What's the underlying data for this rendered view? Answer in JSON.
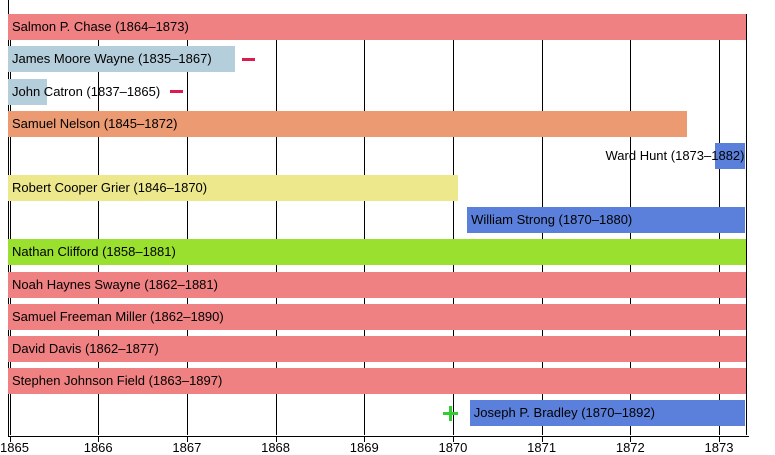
{
  "chart_data": {
    "type": "timeline",
    "title": "",
    "x_axis": {
      "tick_labels": [
        "1865",
        "1866",
        "1867",
        "1868",
        "1869",
        "1870",
        "1871",
        "1872",
        "1873"
      ],
      "range": [
        1865,
        1873.3
      ],
      "grid": true
    },
    "rows": [
      {
        "name": "Salmon P. Chase",
        "label": "Salmon P. Chase (1864–1873)",
        "tenure": [
          1864,
          1873
        ],
        "bar": [
          1864.99,
          1873.3
        ],
        "color": "#f08182",
        "label_align": "left"
      },
      {
        "name": "James Moore Wayne",
        "label": "James Moore Wayne (1835–1867)",
        "tenure": [
          1835,
          1867
        ],
        "bar": [
          1864.99,
          1867.54
        ],
        "color": "#b5cedb",
        "label_align": "left"
      },
      {
        "name": "John Catron",
        "label": "John Catron (1837–1865)",
        "tenure": [
          1837,
          1865
        ],
        "bar": [
          1864.99,
          1865.42
        ],
        "color": "#b5cedb",
        "label_align": "left"
      },
      {
        "name": "Samuel Nelson",
        "label": "Samuel Nelson (1845–1872)",
        "tenure": [
          1845,
          1872
        ],
        "bar": [
          1864.99,
          1872.64
        ],
        "color": "#eb9a72",
        "label_align": "left"
      },
      {
        "name": "Ward Hunt",
        "label": "Ward Hunt (1873–1882)",
        "tenure": [
          1873,
          1882
        ],
        "bar": [
          1872.96,
          1873.3
        ],
        "color": "#5b80db",
        "label_align": "right"
      },
      {
        "name": "Robert Cooper Grier",
        "label": "Robert Cooper Grier (1846–1870)",
        "tenure": [
          1846,
          1870
        ],
        "bar": [
          1864.99,
          1870.06
        ],
        "color": "#ede88c",
        "label_align": "left"
      },
      {
        "name": "William Strong",
        "label": "William Strong (1870–1880)",
        "tenure": [
          1870,
          1880
        ],
        "bar": [
          1870.16,
          1873.3
        ],
        "color": "#5b80db",
        "label_align": "left"
      },
      {
        "name": "Nathan Clifford",
        "label": "Nathan Clifford (1858–1881)",
        "tenure": [
          1858,
          1881
        ],
        "bar": [
          1864.99,
          1873.3
        ],
        "color": "#99e12e",
        "label_align": "left"
      },
      {
        "name": "Noah Haynes Swayne",
        "label": "Noah Haynes Swayne (1862–1881)",
        "tenure": [
          1862,
          1881
        ],
        "bar": [
          1864.99,
          1873.3
        ],
        "color": "#f08182",
        "label_align": "left"
      },
      {
        "name": "Samuel Freeman Miller",
        "label": "Samuel Freeman Miller (1862–1890)",
        "tenure": [
          1862,
          1890
        ],
        "bar": [
          1864.99,
          1873.3
        ],
        "color": "#f08182",
        "label_align": "left"
      },
      {
        "name": "David Davis",
        "label": "David Davis (1862–1877)",
        "tenure": [
          1862,
          1877
        ],
        "bar": [
          1864.99,
          1873.3
        ],
        "color": "#f08182",
        "label_align": "left"
      },
      {
        "name": "Stephen Johnson Field",
        "label": "Stephen Johnson Field (1863–1897)",
        "tenure": [
          1863,
          1897
        ],
        "bar": [
          1864.99,
          1873.3
        ],
        "color": "#f08182",
        "label_align": "left"
      },
      {
        "name": "Joseph P. Bradley",
        "label": "Joseph P. Bradley (1870–1892)",
        "tenure": [
          1870,
          1892
        ],
        "bar": [
          1870.19,
          1873.3
        ],
        "color": "#5b80db",
        "label_align": "left"
      }
    ],
    "markers": [
      {
        "row": 1,
        "type": "minus",
        "year": 1867.7,
        "color": "#dc1c4c",
        "meaning": "seat-abolished"
      },
      {
        "row": 2,
        "type": "minus",
        "year": 1866.88,
        "color": "#dc1c4c",
        "meaning": "seat-abolished"
      },
      {
        "row": 12,
        "type": "plus",
        "year": 1869.97,
        "color": "#33cc33",
        "meaning": "seat-established"
      }
    ],
    "colors": {
      "grid": "#000000",
      "text": "#000000",
      "background": "#ffffff"
    }
  }
}
